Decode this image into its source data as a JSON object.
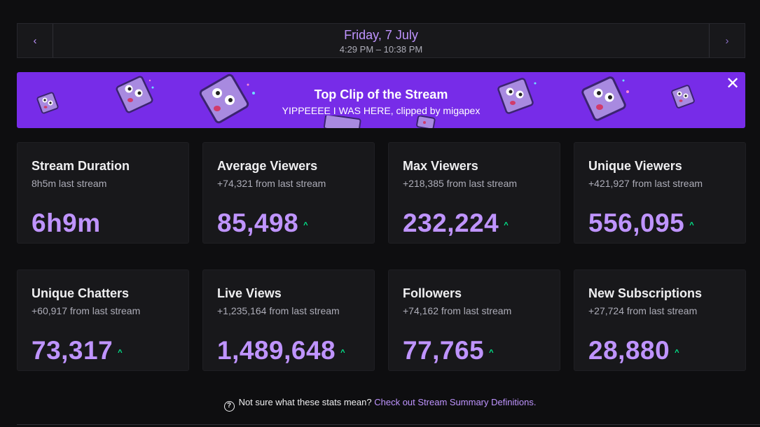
{
  "datebar": {
    "prev_icon": "chevron-left-icon",
    "next_icon": "chevron-right-icon",
    "date": "Friday, 7 July",
    "time_range": "4:29 PM – 10:38 PM"
  },
  "banner": {
    "title": "Top Clip of the Stream",
    "subtitle": "YIPPEEEE I WAS HERE, clipped by migapex",
    "close_icon": "close-icon",
    "background": "#772ce8"
  },
  "stats": [
    {
      "title": "Stream Duration",
      "delta": "8h5m last stream",
      "value": "6h9m",
      "trend": ""
    },
    {
      "title": "Average Viewers",
      "delta": "+74,321 from last stream",
      "value": "85,498",
      "trend": "^"
    },
    {
      "title": "Max Viewers",
      "delta": "+218,385 from last stream",
      "value": "232,224",
      "trend": "^"
    },
    {
      "title": "Unique Viewers",
      "delta": "+421,927 from last stream",
      "value": "556,095",
      "trend": "^"
    },
    {
      "title": "Unique Chatters",
      "delta": "+60,917 from last stream",
      "value": "73,317",
      "trend": "^"
    },
    {
      "title": "Live Views",
      "delta": "+1,235,164 from last stream",
      "value": "1,489,648",
      "trend": "^"
    },
    {
      "title": "Followers",
      "delta": "+74,162 from last stream",
      "value": "77,765",
      "trend": "^"
    },
    {
      "title": "New Subscriptions",
      "delta": "+27,724 from last stream",
      "value": "28,880",
      "trend": "^"
    }
  ],
  "footer": {
    "question": "Not sure what these stats mean?",
    "link": "Check out Stream Summary Definitions."
  },
  "colors": {
    "accent": "#bf94ff",
    "trend_up": "#00f593",
    "background": "#0e0e10",
    "card": "#18181b"
  }
}
